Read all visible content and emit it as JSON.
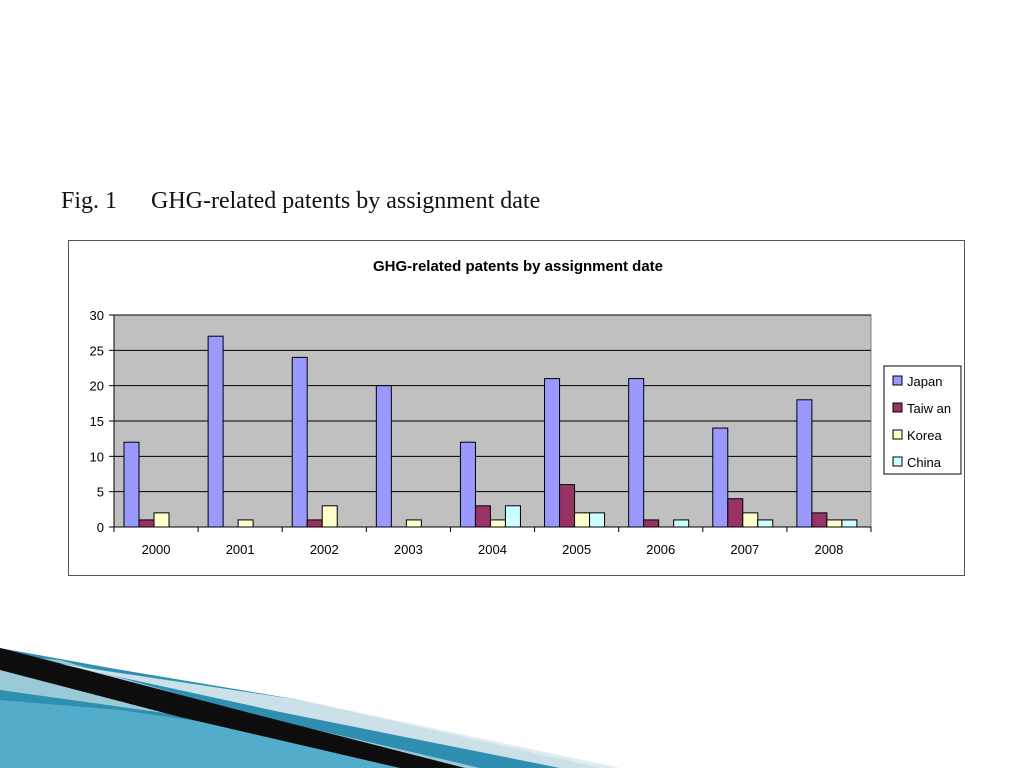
{
  "slide": {
    "figure_number": "Fig. 1",
    "figure_caption": "GHG-related patents by assignment date"
  },
  "chart_data": {
    "type": "bar",
    "title": "GHG-related patents by assignment date",
    "categories": [
      "2000",
      "2001",
      "2002",
      "2003",
      "2004",
      "2005",
      "2006",
      "2007",
      "2008"
    ],
    "series": [
      {
        "name": "Japan",
        "color": "#9999ff",
        "values": [
          12,
          27,
          24,
          20,
          12,
          21,
          21,
          14,
          18
        ]
      },
      {
        "name": "Taiw an",
        "color": "#993366",
        "values": [
          1,
          0,
          1,
          0,
          3,
          6,
          1,
          4,
          2
        ]
      },
      {
        "name": "Korea",
        "color": "#ffffcc",
        "values": [
          2,
          1,
          3,
          1,
          1,
          2,
          0,
          2,
          1
        ]
      },
      {
        "name": "China",
        "color": "#ccffff",
        "values": [
          0,
          0,
          0,
          0,
          3,
          2,
          1,
          1,
          1
        ]
      }
    ],
    "ylim": [
      0,
      30
    ],
    "yticks": [
      0,
      5,
      10,
      15,
      20,
      25,
      30
    ],
    "xlabel": "",
    "ylabel": "",
    "grid": true,
    "legend_position": "right",
    "plot_background": "#c0c0c0"
  }
}
